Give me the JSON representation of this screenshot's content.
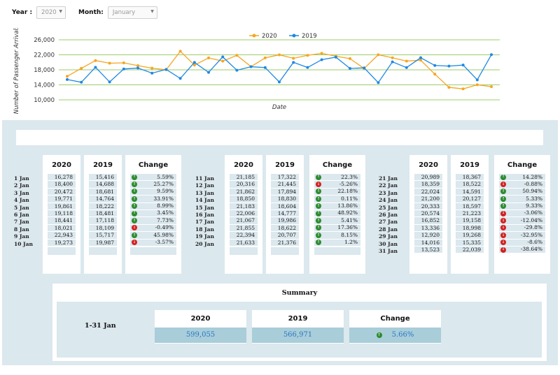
{
  "filters": {
    "year_label": "Year :",
    "year_value": "2020",
    "month_label": "Month:",
    "month_value": "January"
  },
  "colors": {
    "series_2020": "#f5a623",
    "series_2019": "#1e88e5",
    "grid": "#9dcc6a",
    "panel": "#dbe8ee",
    "summary_value": "#2778c4",
    "up": "#2e8b2e",
    "down": "#d42020"
  },
  "chart_data": {
    "type": "line",
    "title": "",
    "xlabel": "Date",
    "ylabel": "Number of Passenger Arrivals",
    "ylim": [
      10000,
      26000
    ],
    "yticks": [
      "10,000",
      "14,000",
      "18,000",
      "22,000",
      "26,000"
    ],
    "grid": true,
    "legend_placement": "top-center",
    "x": [
      1,
      2,
      3,
      4,
      5,
      6,
      7,
      8,
      9,
      10,
      11,
      12,
      13,
      14,
      15,
      16,
      17,
      18,
      19,
      20,
      21,
      22,
      23,
      24,
      25,
      26,
      27,
      28,
      29,
      30,
      31
    ],
    "series": [
      {
        "name": "2020",
        "color": "#f5a623",
        "values": [
          16278,
          18400,
          20472,
          19771,
          19861,
          19118,
          18441,
          18021,
          22943,
          19273,
          21185,
          20316,
          21862,
          18850,
          21183,
          22006,
          21067,
          21855,
          22394,
          21633,
          20989,
          18359,
          22024,
          21200,
          20333,
          20574,
          16852,
          13336,
          12920,
          14016,
          13523
        ]
      },
      {
        "name": "2019",
        "color": "#1e88e5",
        "values": [
          15416,
          14688,
          18681,
          14764,
          18222,
          18481,
          17118,
          18109,
          15717,
          19987,
          17322,
          21445,
          17894,
          18830,
          18604,
          14777,
          19986,
          18622,
          20707,
          21376,
          18367,
          18522,
          14591,
          20127,
          18597,
          21223,
          19158,
          18998,
          19268,
          15335,
          22039
        ]
      }
    ]
  },
  "table": {
    "h2020": "2020",
    "h2019": "2019",
    "hchange": "Change",
    "col1": [
      {
        "date": "1 Jan",
        "v2020": "16,278",
        "v2019": "15,416",
        "change": "5.59%",
        "dir": "up"
      },
      {
        "date": "2 Jan",
        "v2020": "18,400",
        "v2019": "14,688",
        "change": "25.27%",
        "dir": "up"
      },
      {
        "date": "3 Jan",
        "v2020": "20,472",
        "v2019": "18,681",
        "change": "9.59%",
        "dir": "up"
      },
      {
        "date": "4 Jan",
        "v2020": "19,771",
        "v2019": "14,764",
        "change": "33.91%",
        "dir": "up"
      },
      {
        "date": "5 Jan",
        "v2020": "19,861",
        "v2019": "18,222",
        "change": "8.99%",
        "dir": "up"
      },
      {
        "date": "6 Jan",
        "v2020": "19,118",
        "v2019": "18,481",
        "change": "3.45%",
        "dir": "up"
      },
      {
        "date": "7 Jan",
        "v2020": "18,441",
        "v2019": "17,118",
        "change": "7.73%",
        "dir": "up"
      },
      {
        "date": "8 Jan",
        "v2020": "18,021",
        "v2019": "18,109",
        "change": "-0.49%",
        "dir": "down"
      },
      {
        "date": "9 Jan",
        "v2020": "22,943",
        "v2019": "15,717",
        "change": "45.98%",
        "dir": "up"
      },
      {
        "date": "10 Jan",
        "v2020": "19,273",
        "v2019": "19,987",
        "change": "-3.57%",
        "dir": "down"
      }
    ],
    "col2": [
      {
        "date": "11 Jan",
        "v2020": "21,185",
        "v2019": "17,322",
        "change": "22.3%",
        "dir": "up"
      },
      {
        "date": "12 Jan",
        "v2020": "20,316",
        "v2019": "21,445",
        "change": "-5.26%",
        "dir": "down"
      },
      {
        "date": "13 Jan",
        "v2020": "21,862",
        "v2019": "17,894",
        "change": "22.18%",
        "dir": "up"
      },
      {
        "date": "14 Jan",
        "v2020": "18,850",
        "v2019": "18,830",
        "change": "0.11%",
        "dir": "up"
      },
      {
        "date": "15 Jan",
        "v2020": "21,183",
        "v2019": "18,604",
        "change": "13.86%",
        "dir": "up"
      },
      {
        "date": "16 Jan",
        "v2020": "22,006",
        "v2019": "14,777",
        "change": "48.92%",
        "dir": "up"
      },
      {
        "date": "17 Jan",
        "v2020": "21,067",
        "v2019": "19,986",
        "change": "5.41%",
        "dir": "up"
      },
      {
        "date": "18 Jan",
        "v2020": "21,855",
        "v2019": "18,622",
        "change": "17.36%",
        "dir": "up"
      },
      {
        "date": "19 Jan",
        "v2020": "22,394",
        "v2019": "20,707",
        "change": "8.15%",
        "dir": "up"
      },
      {
        "date": "20 Jan",
        "v2020": "21,633",
        "v2019": "21,376",
        "change": "1.2%",
        "dir": "up"
      }
    ],
    "col3": [
      {
        "date": "21 Jan",
        "v2020": "20,989",
        "v2019": "18,367",
        "change": "14.28%",
        "dir": "up"
      },
      {
        "date": "22 Jan",
        "v2020": "18,359",
        "v2019": "18,522",
        "change": "-0.88%",
        "dir": "down"
      },
      {
        "date": "23 Jan",
        "v2020": "22,024",
        "v2019": "14,591",
        "change": "50.94%",
        "dir": "up"
      },
      {
        "date": "24 Jan",
        "v2020": "21,200",
        "v2019": "20,127",
        "change": "5.33%",
        "dir": "up"
      },
      {
        "date": "25 Jan",
        "v2020": "20,333",
        "v2019": "18,597",
        "change": "9.33%",
        "dir": "up"
      },
      {
        "date": "26 Jan",
        "v2020": "20,574",
        "v2019": "21,223",
        "change": "-3.06%",
        "dir": "down"
      },
      {
        "date": "27 Jan",
        "v2020": "16,852",
        "v2019": "19,158",
        "change": "-12.04%",
        "dir": "down"
      },
      {
        "date": "28 Jan",
        "v2020": "13,336",
        "v2019": "18,998",
        "change": "-29.8%",
        "dir": "down"
      },
      {
        "date": "29 Jan",
        "v2020": "12,920",
        "v2019": "19,268",
        "change": "-32.95%",
        "dir": "down"
      },
      {
        "date": "30 Jan",
        "v2020": "14,016",
        "v2019": "15,335",
        "change": "-8.6%",
        "dir": "down"
      },
      {
        "date": "31 Jan",
        "v2020": "13,523",
        "v2019": "22,039",
        "change": "-38.64%",
        "dir": "down"
      }
    ]
  },
  "summary": {
    "title": "Summary",
    "range": "1-31 Jan",
    "h2020": "2020",
    "h2019": "2019",
    "hchange": "Change",
    "v2020": "599,055",
    "v2019": "566,971",
    "change": "5.66%",
    "dir": "up"
  }
}
